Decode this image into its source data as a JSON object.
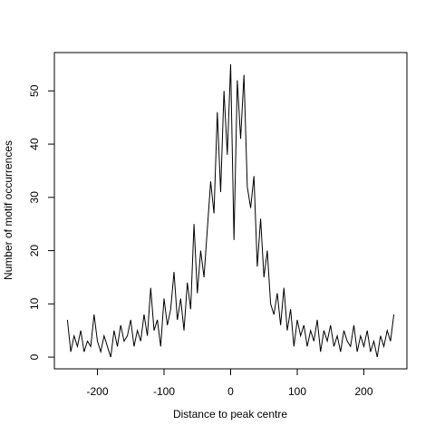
{
  "chart_data": {
    "type": "line",
    "xlabel": "Distance to peak centre",
    "ylabel": "Number of motif occurrences",
    "x": [
      -245,
      -240,
      -235,
      -230,
      -225,
      -220,
      -215,
      -210,
      -205,
      -200,
      -195,
      -190,
      -185,
      -180,
      -175,
      -170,
      -165,
      -160,
      -155,
      -150,
      -145,
      -140,
      -135,
      -130,
      -125,
      -120,
      -115,
      -110,
      -105,
      -100,
      -95,
      -90,
      -85,
      -80,
      -75,
      -70,
      -65,
      -60,
      -55,
      -50,
      -45,
      -40,
      -35,
      -30,
      -25,
      -20,
      -15,
      -10,
      -5,
      0,
      5,
      10,
      15,
      20,
      25,
      30,
      35,
      40,
      45,
      50,
      55,
      60,
      65,
      70,
      75,
      80,
      85,
      90,
      95,
      100,
      105,
      110,
      115,
      120,
      125,
      130,
      135,
      140,
      145,
      150,
      155,
      160,
      165,
      170,
      175,
      180,
      185,
      190,
      195,
      200,
      205,
      210,
      215,
      220,
      225,
      230,
      235,
      240,
      245
    ],
    "series": [
      {
        "color": "#000000",
        "values": [
          7,
          1,
          4,
          2,
          5,
          1,
          3,
          2,
          8,
          3,
          1,
          4,
          2,
          0,
          5,
          2,
          6,
          3,
          4,
          7,
          2,
          5,
          3,
          8,
          4,
          13,
          5,
          7,
          2,
          11,
          6,
          9,
          16,
          7,
          11,
          5,
          14,
          9,
          25,
          12,
          20,
          15,
          24,
          33,
          27,
          46,
          31,
          50,
          38,
          55,
          22,
          52,
          41,
          53,
          32,
          28,
          34,
          17,
          26,
          15,
          20,
          10,
          8,
          12,
          6,
          13,
          5,
          9,
          2,
          7,
          4,
          6,
          2,
          5,
          3,
          7,
          1,
          5,
          3,
          6,
          2,
          4,
          1,
          5,
          3,
          2,
          6,
          1,
          4,
          2,
          5,
          1,
          3,
          0,
          4,
          2,
          5,
          3,
          8
        ]
      }
    ],
    "xlim": [
      -264.6,
      264.6
    ],
    "ylim": [
      -2.2,
      57.2
    ],
    "xticks": [
      -200,
      -100,
      0,
      100,
      200
    ],
    "yticks": [
      0,
      10,
      20,
      30,
      40,
      50
    ]
  }
}
